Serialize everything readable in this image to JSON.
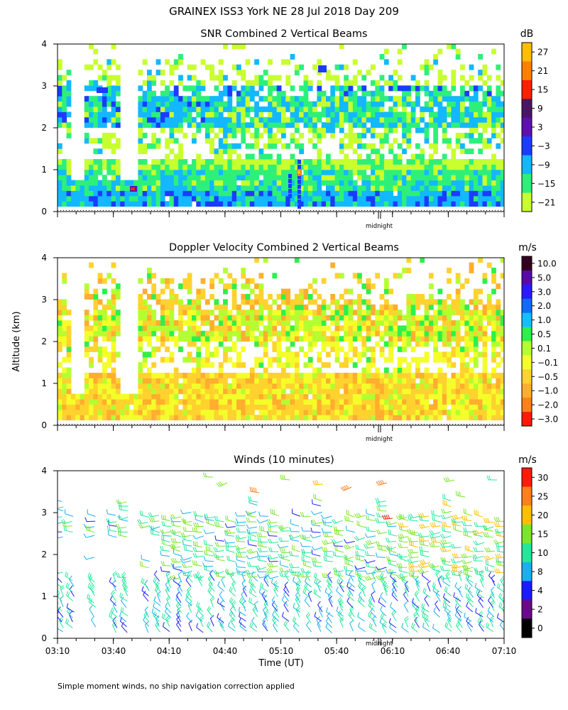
{
  "figure": {
    "title": "GRAINEX ISS3 York NE  28 Jul 2018 Day 209",
    "ylabel": "Altitude (km)",
    "xlabel": "Time (UT)",
    "footnote": "Simple moment winds, no ship navigation correction applied",
    "midnight_label": "midnight"
  },
  "chart_data": [
    {
      "type": "heatmap",
      "title": "SNR Combined 2 Vertical Beams",
      "colorbar_unit": "dB",
      "colorbar_labels": [
        "27",
        "21",
        "15",
        "9",
        "3",
        "−3",
        "−9",
        "−15",
        "−21"
      ],
      "colorbar_colors": [
        "#ffbf00",
        "#ff7f00",
        "#ff2000",
        "#4a1566",
        "#5e0fb0",
        "#1b3cff",
        "#13b8ff",
        "#2df07a",
        "#c8ff2e"
      ],
      "ylim": [
        0,
        4
      ],
      "yticks": [
        "0",
        "1",
        "2",
        "3",
        "4"
      ],
      "xlim": [
        "03:10",
        "07:10"
      ]
    },
    {
      "type": "heatmap",
      "title": "Doppler Velocity Combined 2 Vertical Beams",
      "colorbar_unit": "m/s",
      "colorbar_labels": [
        "10.0",
        "5.0",
        "3.0",
        "2.0",
        "1.0",
        "0.5",
        "0.1",
        "−0.1",
        "−0.5",
        "−1.0",
        "−2.0",
        "−3.0"
      ],
      "colorbar_colors": [
        "#35001f",
        "#5a0aa8",
        "#2a1aff",
        "#0f6bff",
        "#12c0ff",
        "#2df04a",
        "#b4ff30",
        "#f4ff2a",
        "#ffd22e",
        "#ffae2e",
        "#ff7f1a",
        "#ff1a0a"
      ],
      "ylim": [
        0,
        4
      ],
      "yticks": [
        "0",
        "1",
        "2",
        "3",
        "4"
      ],
      "xlim": [
        "03:10",
        "07:10"
      ]
    },
    {
      "type": "scatter",
      "title": "Winds (10 minutes)",
      "colorbar_unit": "m/s",
      "colorbar_labels": [
        "30",
        "25",
        "20",
        "15",
        "10",
        "8",
        "4",
        "2",
        "0"
      ],
      "colorbar_colors": [
        "#ff1a0a",
        "#ff7f1a",
        "#ffbf00",
        "#7ce62a",
        "#23e89a",
        "#1ab0f0",
        "#1b1bff",
        "#6a0a8a",
        "#000000"
      ],
      "ylim": [
        0,
        4
      ],
      "yticks": [
        "0",
        "1",
        "2",
        "3",
        "4"
      ],
      "xticks": [
        "03:10",
        "03:40",
        "04:10",
        "04:40",
        "05:10",
        "05:40",
        "06:10",
        "06:40",
        "07:10"
      ]
    }
  ]
}
